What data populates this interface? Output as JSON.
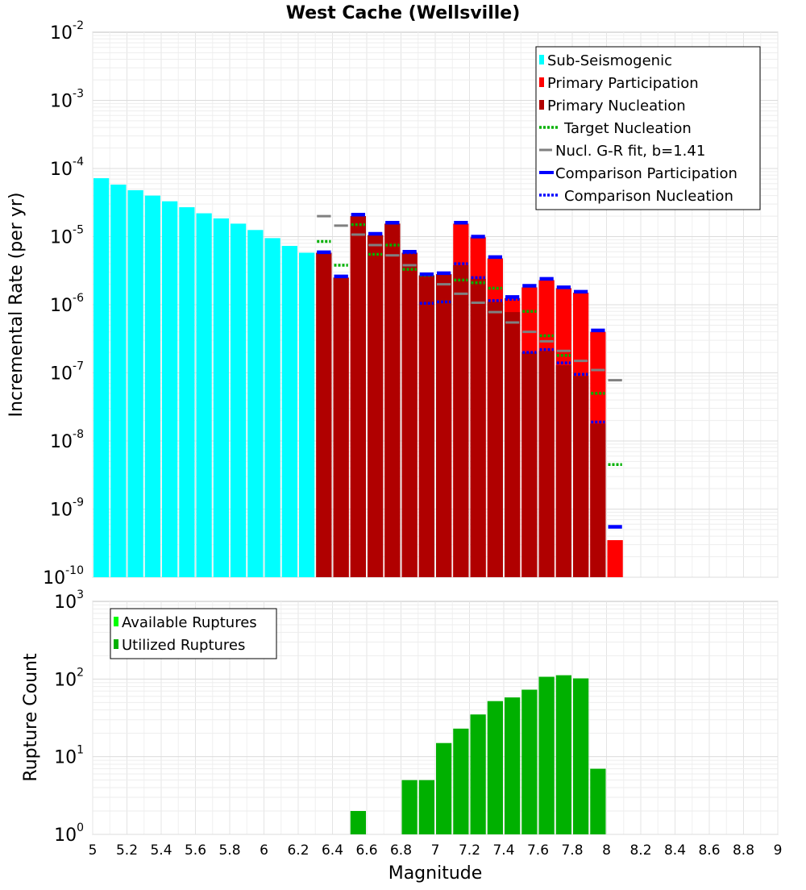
{
  "chart_data": [
    {
      "type": "bar",
      "title": "West Cache (Wellsville)",
      "ylabel": "Incremental Rate (per yr)",
      "xlabel": "",
      "yscale": "log",
      "xlim": [
        5,
        9
      ],
      "ylim_exp": [
        -10,
        -2
      ],
      "ytick_exps": [
        "-10",
        "-9",
        "-8",
        "-7",
        "-6",
        "-5",
        "-4",
        "-3",
        "-2"
      ],
      "ytick_base": "10",
      "bin_width": 0.1,
      "legend_position": "top-right",
      "legend": [
        {
          "label": "Sub-Seismogenic",
          "color": "#00ffff",
          "style": "bar"
        },
        {
          "label": "Primary Participation",
          "color": "#ff0000",
          "style": "bar"
        },
        {
          "label": "Primary Nucleation",
          "color": "#b00000",
          "style": "bar"
        },
        {
          "label": "Target Nucleation",
          "color": "#00b000",
          "style": "dotted"
        },
        {
          "label": "Nucl. G-R fit, b=1.41",
          "color": "#808080",
          "style": "solid"
        },
        {
          "label": "Comparison Participation",
          "color": "#0000ff",
          "style": "thick"
        },
        {
          "label": "Comparison Nucleation",
          "color": "#0000ff",
          "style": "dotted"
        }
      ],
      "series": [
        {
          "name": "Sub-Seismogenic",
          "color": "#00ffff",
          "x": [
            5.05,
            5.15,
            5.25,
            5.35,
            5.45,
            5.55,
            5.65,
            5.75,
            5.85,
            5.95,
            6.05,
            6.15,
            6.25
          ],
          "values": [
            7.2e-05,
            5.8e-05,
            4.8e-05,
            4e-05,
            3.3e-05,
            2.7e-05,
            2.2e-05,
            1.85e-05,
            1.55e-05,
            1.25e-05,
            9.5e-06,
            7.3e-06,
            5.8e-06
          ]
        },
        {
          "name": "Primary Participation",
          "color": "#ff0000",
          "x": [
            6.35,
            6.45,
            6.55,
            6.65,
            6.75,
            6.85,
            6.95,
            7.05,
            7.15,
            7.25,
            7.35,
            7.45,
            7.55,
            7.65,
            7.75,
            7.85,
            7.95,
            8.05
          ],
          "values": [
            5.8e-06,
            2.5e-06,
            2e-05,
            1.05e-05,
            1.55e-05,
            5.8e-06,
            2.7e-06,
            2.8e-06,
            1.55e-05,
            9.8e-06,
            4.8e-06,
            1.25e-06,
            1.8e-06,
            2.3e-06,
            1.75e-06,
            1.5e-06,
            4e-07,
            3.5e-10
          ]
        },
        {
          "name": "Primary Nucleation",
          "color": "#b00000",
          "x": [
            6.35,
            6.45,
            6.55,
            6.65,
            6.75,
            6.85,
            6.95,
            7.05,
            7.15,
            7.25,
            7.35,
            7.45,
            7.55,
            7.65,
            7.75,
            7.85,
            7.95
          ],
          "values": [
            5.8e-06,
            2.5e-06,
            2e-05,
            1.05e-05,
            1.55e-05,
            5.8e-06,
            2.7e-06,
            2.8e-06,
            3.8e-06,
            2.4e-06,
            1.1e-06,
            7.8e-07,
            2e-07,
            2.1e-07,
            1.3e-07,
            9e-08,
            1.8e-08
          ]
        },
        {
          "name": "Target Nucleation",
          "color": "#00b000",
          "x": [
            6.35,
            6.45,
            6.55,
            6.65,
            6.75,
            6.85,
            6.95,
            7.05,
            7.15,
            7.25,
            7.35,
            7.45,
            7.55,
            7.65,
            7.75,
            7.85,
            7.95,
            8.05
          ],
          "values": [
            8.5e-06,
            3.8e-06,
            1.5e-05,
            5.5e-06,
            7.5e-06,
            3.3e-06,
            2.7e-06,
            1.1e-06,
            2.3e-06,
            2.1e-06,
            1.75e-06,
            1.2e-06,
            8e-07,
            3.5e-07,
            1.8e-07,
            9.5e-08,
            5e-08,
            4.5e-09
          ]
        },
        {
          "name": "Nucl. G-R fit, b=1.41",
          "color": "#808080",
          "x": [
            6.35,
            6.45,
            6.55,
            6.65,
            6.75,
            6.85,
            6.95,
            7.05,
            7.15,
            7.25,
            7.35,
            7.45,
            7.55,
            7.65,
            7.75,
            7.85,
            7.95,
            8.05
          ],
          "values": [
            2e-05,
            1.45e-05,
            1.07e-05,
            7.5e-06,
            5.3e-06,
            3.8e-06,
            2.8e-06,
            2e-06,
            1.45e-06,
            1.07e-06,
            7.8e-07,
            5.5e-07,
            4e-07,
            2.9e-07,
            2.1e-07,
            1.5e-07,
            1.1e-07,
            7.8e-08
          ]
        },
        {
          "name": "Comparison Participation",
          "color": "#0000ff",
          "x": [
            6.35,
            6.45,
            6.55,
            6.65,
            6.75,
            6.85,
            6.95,
            7.05,
            7.15,
            7.25,
            7.35,
            7.45,
            7.55,
            7.65,
            7.75,
            7.85,
            7.95,
            8.05
          ],
          "values": [
            5.9e-06,
            2.6e-06,
            2.1e-05,
            1.1e-05,
            1.6e-05,
            6e-06,
            2.8e-06,
            2.9e-06,
            1.6e-05,
            1e-05,
            5e-06,
            1.3e-06,
            1.9e-06,
            2.4e-06,
            1.8e-06,
            1.55e-06,
            4.2e-07,
            5.5e-10
          ]
        },
        {
          "name": "Comparison Nucleation",
          "color": "#0000ff",
          "x": [
            6.35,
            6.45,
            6.55,
            6.65,
            6.75,
            6.85,
            6.95,
            7.05,
            7.15,
            7.25,
            7.35,
            7.45,
            7.55,
            7.65,
            7.75,
            7.85,
            7.95
          ],
          "values": [
            5.9e-06,
            2.6e-06,
            2.1e-05,
            1.1e-05,
            1.6e-05,
            5.8e-06,
            1.05e-06,
            1.1e-06,
            4e-06,
            2.5e-06,
            1.15e-06,
            1.2e-06,
            2e-07,
            2.2e-07,
            1.4e-07,
            9.5e-08,
            1.9e-08
          ]
        }
      ]
    },
    {
      "type": "bar",
      "title": "",
      "xlabel": "Magnitude",
      "ylabel": "Rupture Count",
      "yscale": "log",
      "xlim": [
        5,
        9
      ],
      "ylim_exp": [
        0,
        3
      ],
      "ytick_exps": [
        "0",
        "1",
        "2",
        "3"
      ],
      "ytick_base": "10",
      "xticks": [
        "5",
        "5.2",
        "5.4",
        "5.6",
        "5.8",
        "6",
        "6.2",
        "6.4",
        "6.6",
        "6.8",
        "7",
        "7.2",
        "7.4",
        "7.6",
        "7.8",
        "8",
        "8.2",
        "8.4",
        "8.6",
        "8.8",
        "9"
      ],
      "bin_width": 0.1,
      "legend_position": "top-left",
      "legend": [
        {
          "label": "Available Ruptures",
          "color": "#00ff00",
          "style": "bar"
        },
        {
          "label": "Utilized Ruptures",
          "color": "#00b000",
          "style": "bar"
        }
      ],
      "series": [
        {
          "name": "Utilized Ruptures",
          "color": "#00b000",
          "x": [
            6.55,
            6.65,
            6.85,
            6.95,
            7.05,
            7.15,
            7.25,
            7.35,
            7.45,
            7.55,
            7.65,
            7.75,
            7.85,
            7.95
          ],
          "values": [
            2,
            1,
            5,
            5,
            15,
            23,
            35,
            52,
            58,
            73,
            107,
            112,
            102,
            7
          ]
        }
      ]
    }
  ]
}
